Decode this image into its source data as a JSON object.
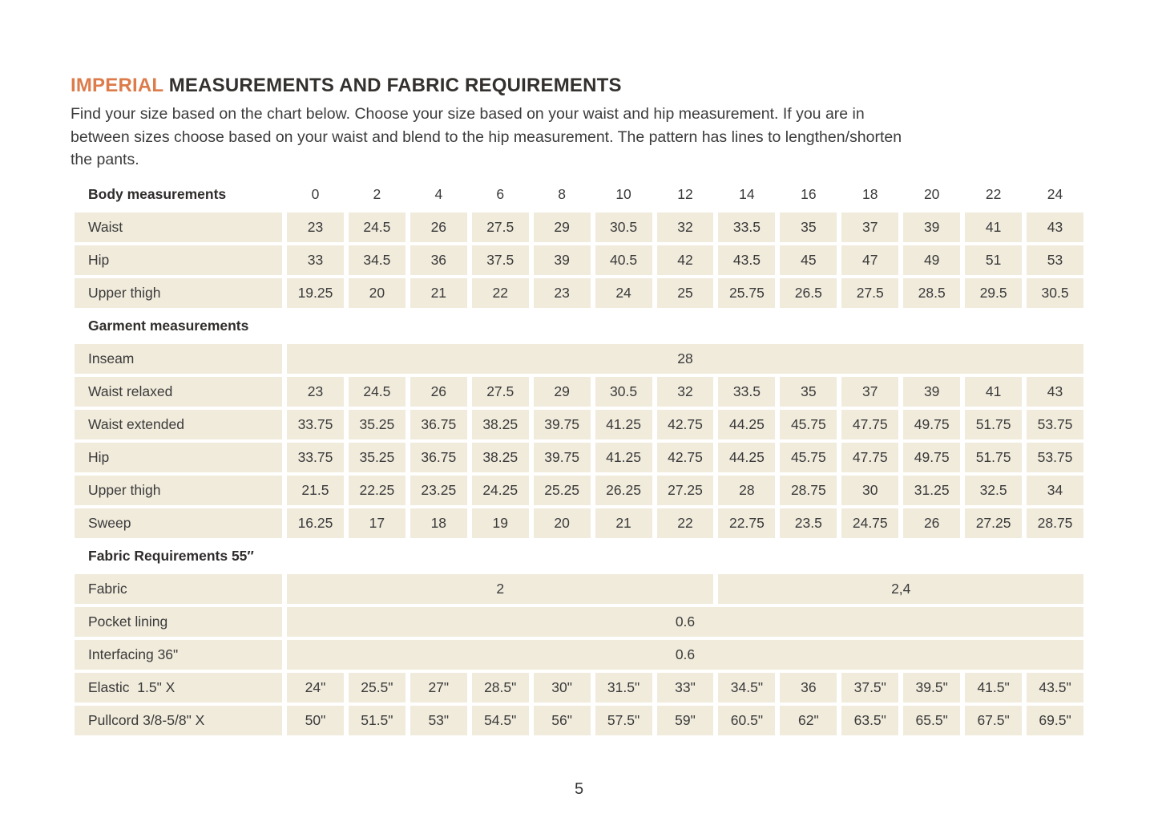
{
  "page": {
    "title_accent": "IMPERIAL",
    "title_rest": " MEASUREMENTS AND FABRIC REQUIREMENTS",
    "intro_lines": [
      "Find your size based on the chart below. Choose your size based on your waist and hip measurement. If you are in",
      "between sizes choose based on your waist and blend to the hip measurement. The pattern has lines to lengthen/shorten",
      "the pants."
    ],
    "page_number": "5"
  },
  "colors": {
    "accent_orange": "#dd7b4a",
    "cell_beige": "#f1ebdc",
    "text_dark": "#3a3a3a"
  },
  "table": {
    "header_label": "Body measurements",
    "sizes": [
      "0",
      "2",
      "4",
      "6",
      "8",
      "10",
      "12",
      "14",
      "16",
      "18",
      "20",
      "22",
      "24"
    ],
    "sections": [
      {
        "header": null,
        "rows": [
          {
            "label": "Waist",
            "cells": [
              "23",
              "24.5",
              "26",
              "27.5",
              "29",
              "30.5",
              "32",
              "33.5",
              "35",
              "37",
              "39",
              "41",
              "43"
            ]
          },
          {
            "label": "Hip",
            "cells": [
              "33",
              "34.5",
              "36",
              "37.5",
              "39",
              "40.5",
              "42",
              "43.5",
              "45",
              "47",
              "49",
              "51",
              "53"
            ]
          },
          {
            "label": "Upper thigh",
            "cells": [
              "19.25",
              "20",
              "21",
              "22",
              "23",
              "24",
              "25",
              "25.75",
              "26.5",
              "27.5",
              "28.5",
              "29.5",
              "30.5"
            ]
          }
        ]
      },
      {
        "header": "Garment measurements",
        "rows": [
          {
            "label": "Inseam",
            "spans": [
              {
                "value": "28",
                "cols": 13
              }
            ]
          },
          {
            "label": "Waist relaxed",
            "cells": [
              "23",
              "24.5",
              "26",
              "27.5",
              "29",
              "30.5",
              "32",
              "33.5",
              "35",
              "37",
              "39",
              "41",
              "43"
            ]
          },
          {
            "label": "Waist extended",
            "cells": [
              "33.75",
              "35.25",
              "36.75",
              "38.25",
              "39.75",
              "41.25",
              "42.75",
              "44.25",
              "45.75",
              "47.75",
              "49.75",
              "51.75",
              "53.75"
            ]
          },
          {
            "label": "Hip",
            "cells": [
              "33.75",
              "35.25",
              "36.75",
              "38.25",
              "39.75",
              "41.25",
              "42.75",
              "44.25",
              "45.75",
              "47.75",
              "49.75",
              "51.75",
              "53.75"
            ]
          },
          {
            "label": "Upper thigh",
            "cells": [
              "21.5",
              "22.25",
              "23.25",
              "24.25",
              "25.25",
              "26.25",
              "27.25",
              "28",
              "28.75",
              "30",
              "31.25",
              "32.5",
              "34"
            ]
          },
          {
            "label": "Sweep",
            "cells": [
              "16.25",
              "17",
              "18",
              "19",
              "20",
              "21",
              "22",
              "22.75",
              "23.5",
              "24.75",
              "26",
              "27.25",
              "28.75"
            ]
          }
        ]
      },
      {
        "header": "Fabric Requirements 55″",
        "rows": [
          {
            "label": "Fabric",
            "spans": [
              {
                "value": "2",
                "cols": 7
              },
              {
                "value": "2,4",
                "cols": 6
              }
            ]
          },
          {
            "label": "Pocket lining",
            "spans": [
              {
                "value": "0.6",
                "cols": 13
              }
            ]
          },
          {
            "label": "Interfacing 36\"",
            "spans": [
              {
                "value": "0.6",
                "cols": 13
              }
            ]
          },
          {
            "label": "Elastic  1.5\" X",
            "cells": [
              "24\"",
              "25.5\"",
              "27\"",
              "28.5\"",
              "30\"",
              "31.5\"",
              "33\"",
              "34.5\"",
              "36",
              "37.5\"",
              "39.5\"",
              "41.5\"",
              "43.5\""
            ]
          },
          {
            "label": "Pullcord 3/8-5/8\" X",
            "cells": [
              "50\"",
              "51.5\"",
              "53\"",
              "54.5\"",
              "56\"",
              "57.5\"",
              "59\"",
              "60.5\"",
              "62\"",
              "63.5\"",
              "65.5\"",
              "67.5\"",
              "69.5\""
            ]
          }
        ]
      }
    ]
  }
}
